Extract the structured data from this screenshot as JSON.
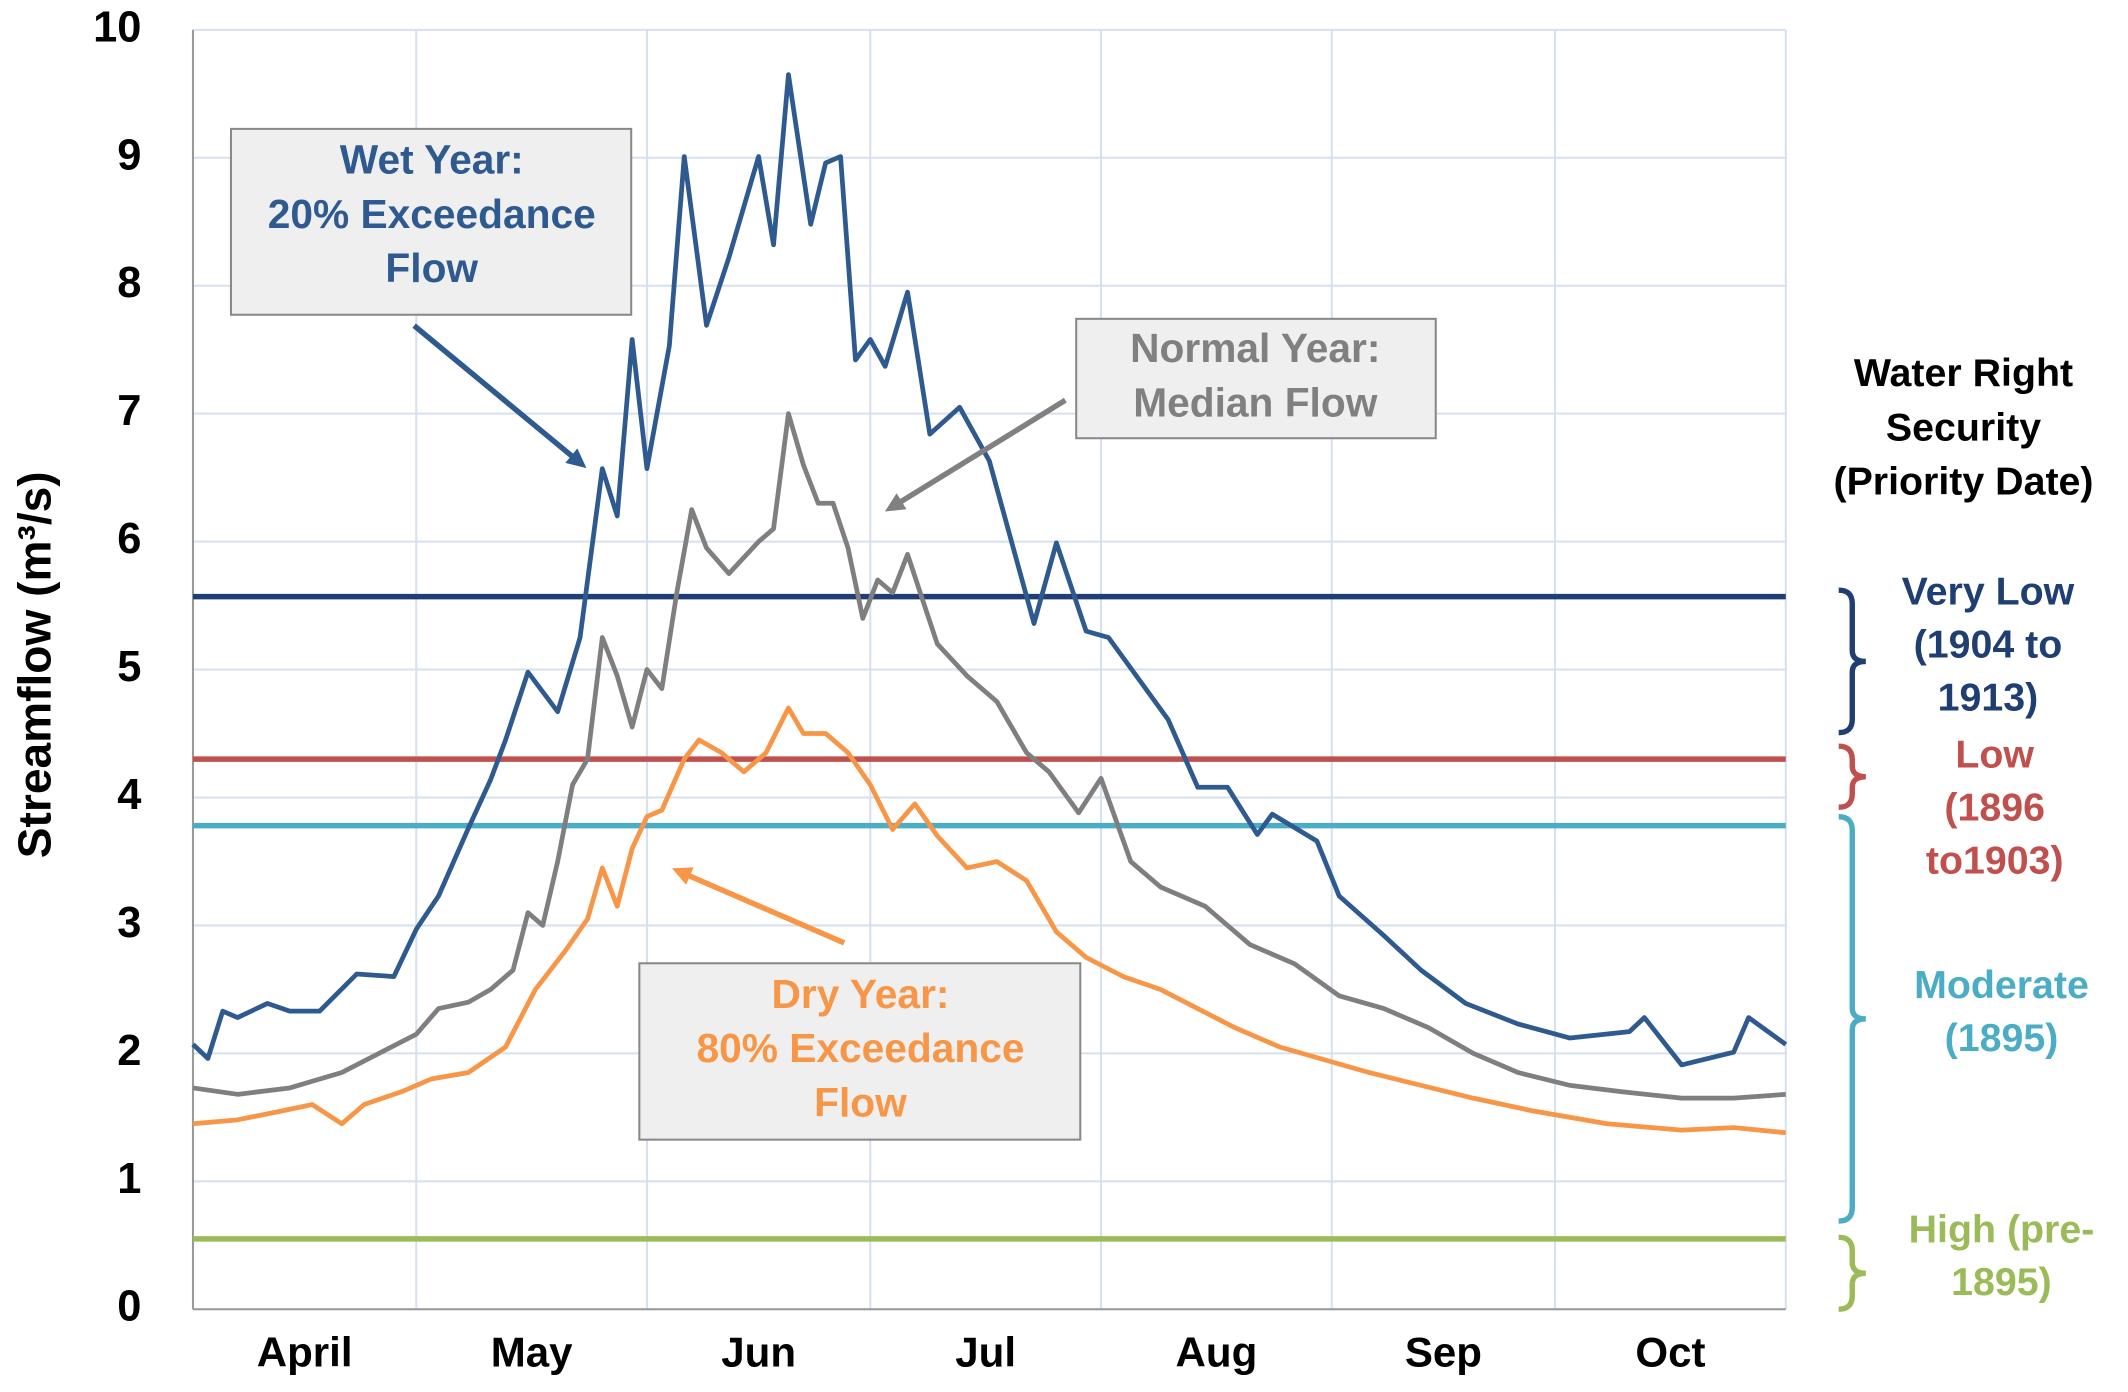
{
  "chart_data": {
    "type": "line",
    "ylabel": "Streamflow (m³/s)",
    "ylim": [
      0,
      10
    ],
    "yticks": [
      0,
      1,
      2,
      3,
      4,
      5,
      6,
      7,
      8,
      9,
      10
    ],
    "xlim": [
      0,
      214
    ],
    "xgrid": [
      0,
      30,
      61,
      91,
      122,
      153,
      183,
      214
    ],
    "xticks": [
      {
        "value": 15,
        "label": "April"
      },
      {
        "value": 45.5,
        "label": "May"
      },
      {
        "value": 76,
        "label": "Jun"
      },
      {
        "value": 106.5,
        "label": "Jul"
      },
      {
        "value": 137.5,
        "label": "Aug"
      },
      {
        "value": 168,
        "label": "Sep"
      },
      {
        "value": 198.5,
        "label": "Oct"
      }
    ],
    "grid": true,
    "series": [
      {
        "color": "#2f5a8f",
        "x": [
          0,
          2,
          4,
          6,
          10,
          13,
          17,
          22,
          27,
          30,
          33,
          37,
          40,
          42,
          45,
          49,
          52,
          55,
          57,
          59,
          61,
          64,
          66,
          69,
          72,
          76,
          78,
          80,
          83,
          85,
          87,
          89,
          91,
          93,
          96,
          99,
          103,
          107,
          113,
          116,
          120,
          123,
          131,
          135,
          139,
          143,
          145,
          151,
          154,
          160,
          165,
          171,
          178,
          185,
          193,
          195,
          200,
          207,
          209,
          214
        ],
        "values": [
          2.07,
          1.96,
          2.33,
          2.28,
          2.39,
          2.33,
          2.33,
          2.62,
          2.6,
          2.97,
          3.23,
          3.76,
          4.14,
          4.45,
          4.98,
          4.67,
          5.25,
          6.57,
          6.2,
          7.58,
          6.57,
          7.53,
          9.01,
          7.69,
          8.22,
          9.01,
          8.32,
          9.65,
          8.48,
          8.96,
          9.01,
          7.42,
          7.58,
          7.37,
          7.95,
          6.84,
          7.05,
          6.63,
          5.36,
          5.99,
          5.3,
          5.25,
          4.61,
          4.08,
          4.08,
          3.71,
          3.87,
          3.66,
          3.23,
          2.92,
          2.65,
          2.39,
          2.23,
          2.12,
          2.17,
          2.28,
          1.91,
          2.01,
          2.28,
          2.07
        ]
      },
      {
        "color": "#7f7f7f",
        "x": [
          0,
          6,
          13,
          20,
          25,
          30,
          33,
          37,
          40,
          43,
          45,
          47,
          49,
          51,
          53,
          55,
          57,
          59,
          61,
          63,
          65,
          67,
          69,
          72,
          76,
          78,
          80,
          82,
          84,
          86,
          88,
          90,
          92,
          94,
          96,
          98,
          100,
          104,
          108,
          112,
          115,
          119,
          122,
          126,
          130,
          136,
          142,
          148,
          154,
          160,
          166,
          172,
          178,
          185,
          192,
          200,
          207,
          214
        ],
        "values": [
          1.73,
          1.68,
          1.73,
          1.85,
          2.0,
          2.15,
          2.35,
          2.4,
          2.5,
          2.65,
          3.1,
          3.0,
          3.5,
          4.1,
          4.3,
          5.25,
          4.95,
          4.55,
          5.0,
          4.85,
          5.6,
          6.25,
          5.95,
          5.75,
          6.0,
          6.1,
          7.0,
          6.6,
          6.3,
          6.3,
          5.95,
          5.4,
          5.7,
          5.6,
          5.9,
          5.55,
          5.2,
          4.95,
          4.75,
          4.35,
          4.2,
          3.88,
          4.15,
          3.5,
          3.3,
          3.15,
          2.85,
          2.7,
          2.45,
          2.35,
          2.2,
          2.0,
          1.85,
          1.75,
          1.7,
          1.65,
          1.65,
          1.68
        ]
      },
      {
        "color": "#f79646",
        "x": [
          0,
          6,
          12,
          16,
          20,
          23,
          28,
          32,
          37,
          42,
          46,
          50,
          53,
          55,
          57,
          59,
          61,
          63,
          66,
          68,
          71,
          74,
          77,
          80,
          82,
          85,
          88,
          91,
          94,
          97,
          100,
          104,
          108,
          112,
          116,
          120,
          125,
          130,
          135,
          140,
          146,
          152,
          158,
          165,
          172,
          180,
          190,
          200,
          207,
          214
        ],
        "values": [
          1.45,
          1.48,
          1.55,
          1.6,
          1.45,
          1.6,
          1.7,
          1.8,
          1.85,
          2.05,
          2.5,
          2.8,
          3.05,
          3.45,
          3.15,
          3.6,
          3.85,
          3.9,
          4.3,
          4.45,
          4.35,
          4.2,
          4.35,
          4.7,
          4.5,
          4.5,
          4.35,
          4.1,
          3.75,
          3.95,
          3.7,
          3.45,
          3.5,
          3.35,
          2.95,
          2.75,
          2.6,
          2.5,
          2.35,
          2.2,
          2.05,
          1.95,
          1.85,
          1.75,
          1.65,
          1.55,
          1.45,
          1.4,
          1.42,
          1.38
        ]
      }
    ],
    "thresholds": [
      {
        "value": 5.57,
        "color": "#1f3f73",
        "label": [
          "Very Low",
          "(1904 to",
          "1913)"
        ]
      },
      {
        "value": 4.3,
        "color": "#c0504d",
        "label": [
          "Low",
          "(1896",
          "to1903)"
        ]
      },
      {
        "value": 3.78,
        "color": "#4bacc6",
        "label": [
          "Moderate",
          "(1895)"
        ]
      },
      {
        "value": 0.55,
        "color": "#9bbb59",
        "label": [
          "High (pre-",
          "1895)"
        ]
      }
    ],
    "right_title": [
      "Water Right",
      "Security",
      "(Priority Date)"
    ],
    "annotations": [
      {
        "lines": [
          "Wet Year:",
          "20% Exceedance",
          "Flow"
        ],
        "color": "#2f5a8f"
      },
      {
        "lines": [
          "Normal Year:",
          "Median Flow"
        ],
        "color": "#808080"
      },
      {
        "lines": [
          "Dry Year:",
          "80% Exceedance",
          "Flow"
        ],
        "color": "#f79646"
      }
    ]
  }
}
